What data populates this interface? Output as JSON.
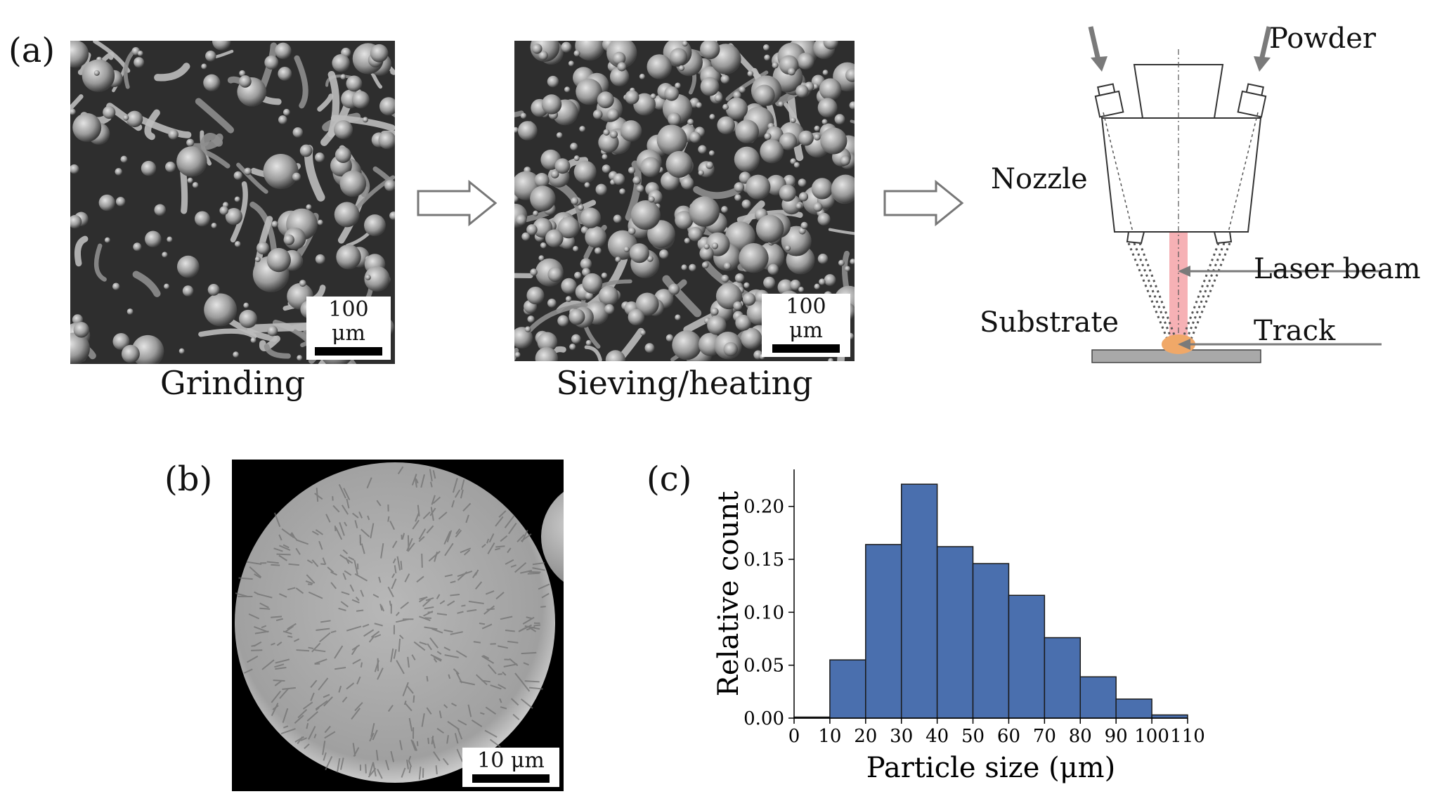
{
  "panels": {
    "a": {
      "label": "(a)",
      "images": [
        {
          "caption": "Grinding",
          "scale_text": "100 μm"
        },
        {
          "caption": "Sieving/heating",
          "scale_text": "100 μm"
        }
      ],
      "diagram": {
        "labels": {
          "powder": "Powder",
          "nozzle": "Nozzle",
          "laser_beam": "Laser beam",
          "substrate": "Substrate",
          "track": "Track"
        },
        "colors": {
          "laser": "#f4a3a8",
          "track": "#f0a868",
          "substrate": "#a9a9a9",
          "arrow": "#7a7a7a"
        }
      }
    },
    "b": {
      "label": "(b)",
      "scale_text": "10 μm"
    },
    "c": {
      "label": "(c)"
    }
  },
  "chart_data": {
    "type": "bar",
    "title": "",
    "xlabel": "Particle size (μm)",
    "ylabel": "Relative count",
    "bin_edges": [
      0,
      10,
      20,
      30,
      40,
      50,
      60,
      70,
      80,
      90,
      100,
      110
    ],
    "values": [
      0.001,
      0.055,
      0.164,
      0.221,
      0.162,
      0.146,
      0.116,
      0.076,
      0.039,
      0.018,
      0.003
    ],
    "x_ticks": [
      "0",
      "10",
      "20",
      "30",
      "40",
      "50",
      "60",
      "70",
      "80",
      "90",
      "100",
      "110"
    ],
    "y_ticks": [
      "0.00",
      "0.05",
      "0.10",
      "0.15",
      "0.20"
    ],
    "xlim": [
      0,
      110
    ],
    "ylim": [
      0,
      0.235
    ],
    "bar_color": "#4a6fae",
    "grid": false
  }
}
